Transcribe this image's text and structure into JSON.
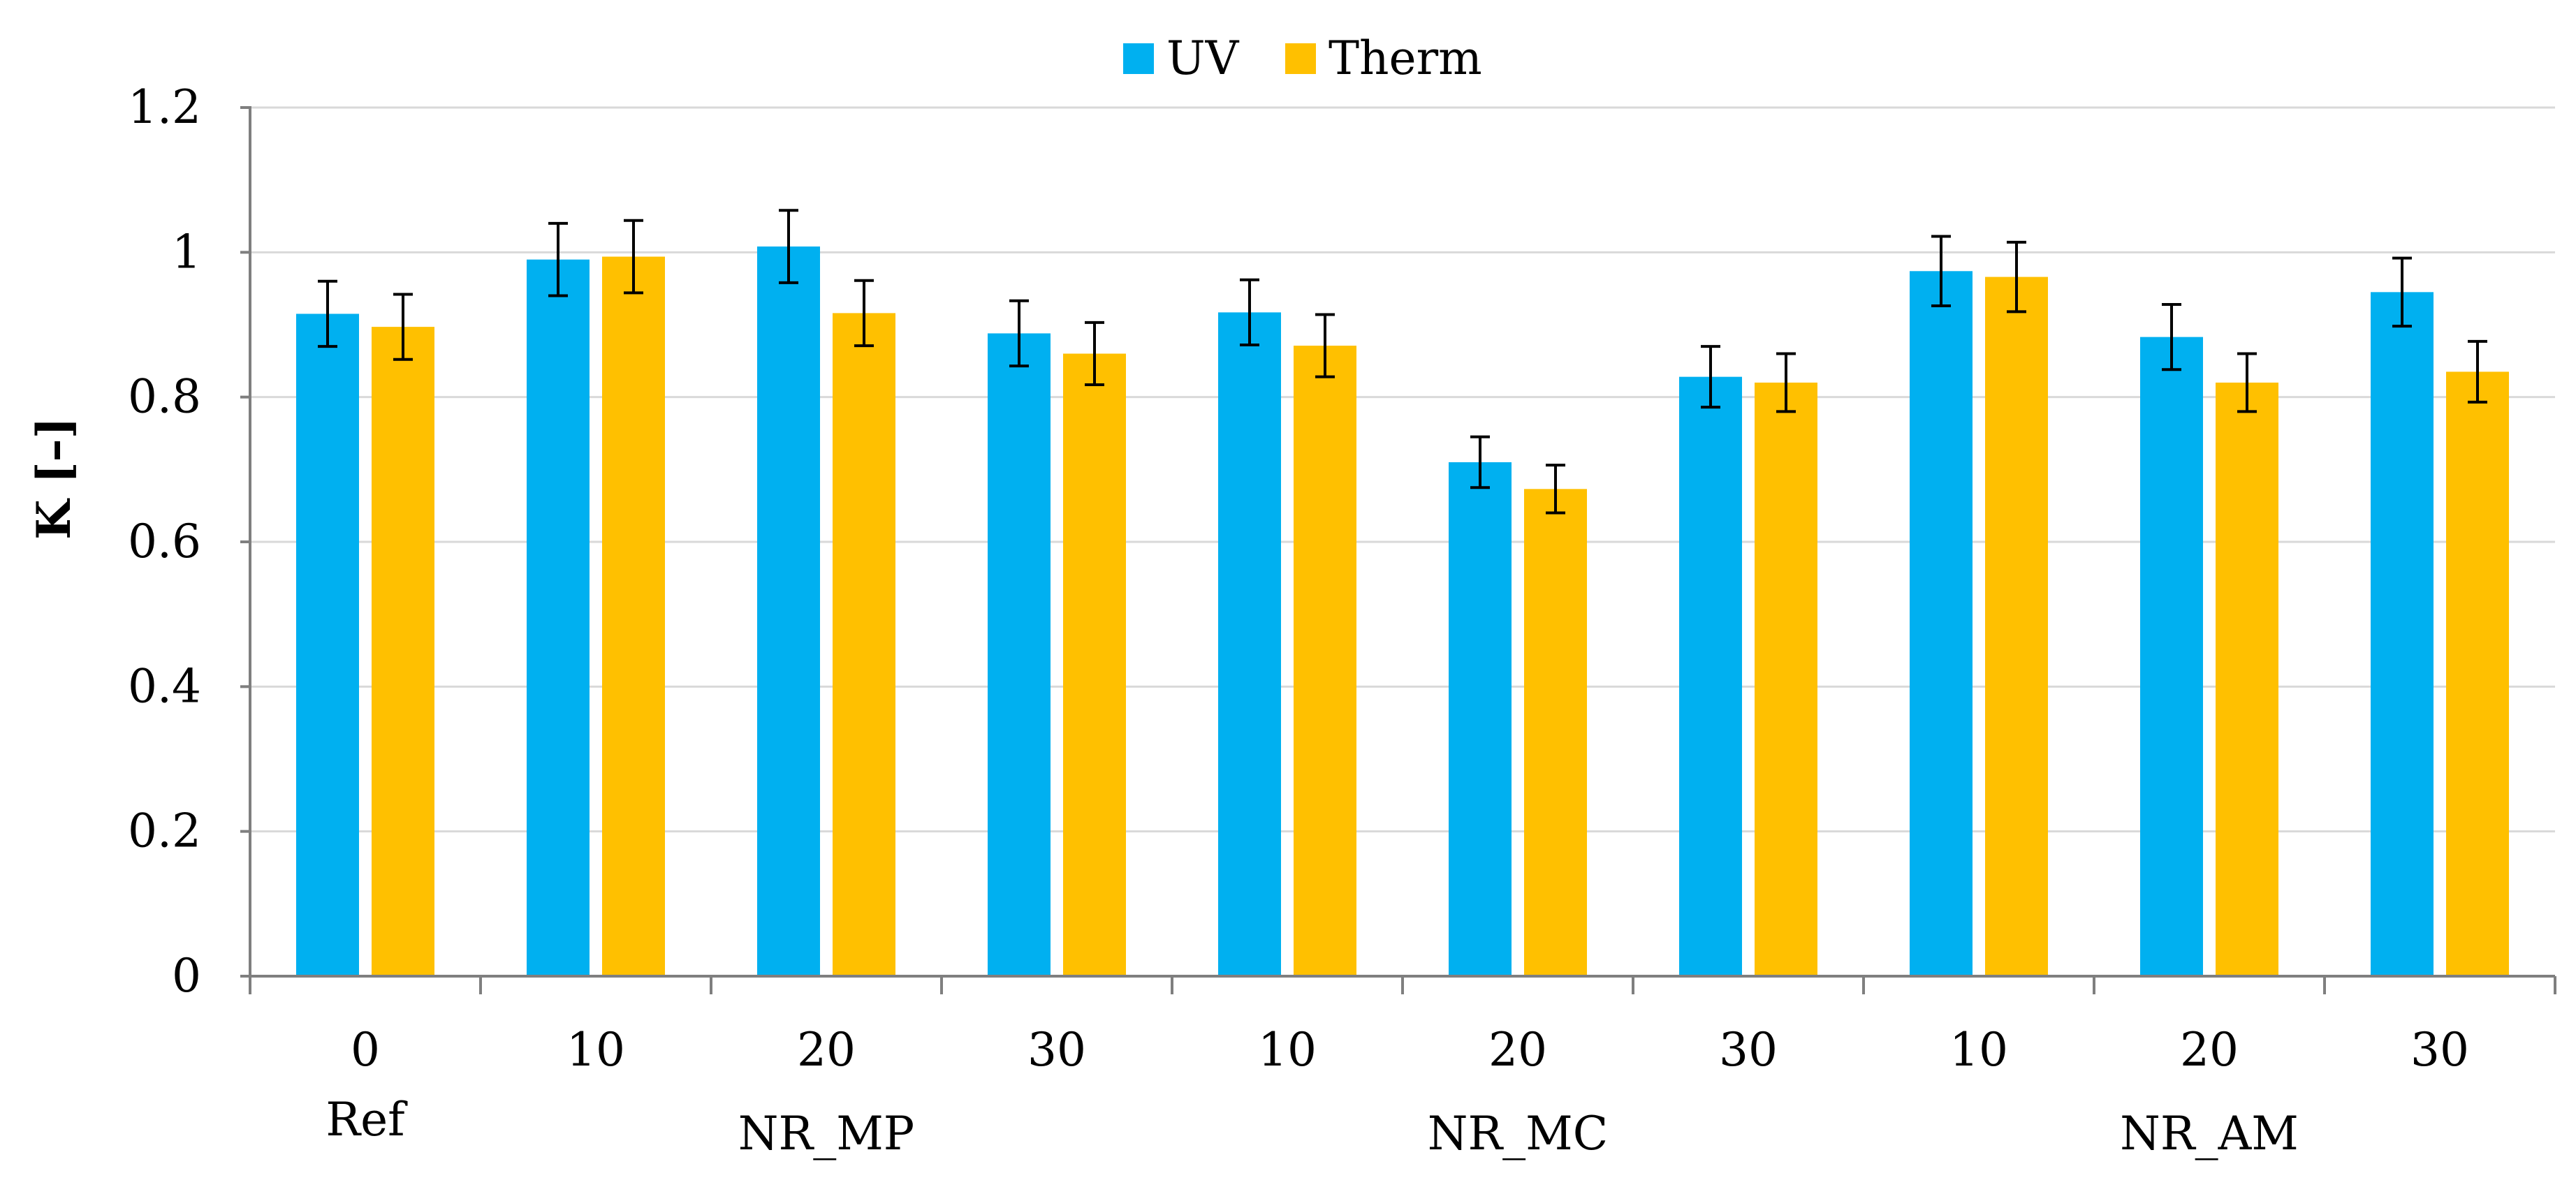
{
  "chart_data": {
    "type": "bar",
    "title": "",
    "xlabel": "",
    "ylabel": "K [–]",
    "ylim": [
      0,
      1.2
    ],
    "yticks": [
      "0",
      "0.2",
      "0.4",
      "0.6",
      "0.8",
      "1",
      "1.2"
    ],
    "grid": true,
    "legend": {
      "position": "top-center",
      "entries": [
        "UV",
        "Therm"
      ]
    },
    "categories": [
      "0",
      "10",
      "20",
      "30",
      "10",
      "20",
      "30",
      "10",
      "20",
      "30"
    ],
    "groups": [
      {
        "label": "Ref",
        "start": 0,
        "count": 1
      },
      {
        "label": "NR_MP",
        "start": 1,
        "count": 3
      },
      {
        "label": "NR_MC",
        "start": 4,
        "count": 3
      },
      {
        "label": "NR_AM",
        "start": 7,
        "count": 3
      }
    ],
    "series": [
      {
        "name": "UV",
        "color": "#00b0f0",
        "values": [
          0.915,
          0.99,
          1.008,
          0.888,
          0.917,
          0.71,
          0.828,
          0.974,
          0.883,
          0.945
        ],
        "errors": [
          0.045,
          0.05,
          0.05,
          0.045,
          0.045,
          0.035,
          0.042,
          0.048,
          0.045,
          0.047
        ]
      },
      {
        "name": "Therm",
        "color": "#ffc000",
        "values": [
          0.897,
          0.994,
          0.916,
          0.86,
          0.871,
          0.673,
          0.82,
          0.966,
          0.82,
          0.835
        ],
        "errors": [
          0.045,
          0.05,
          0.045,
          0.043,
          0.043,
          0.033,
          0.04,
          0.048,
          0.04,
          0.042
        ]
      }
    ]
  }
}
